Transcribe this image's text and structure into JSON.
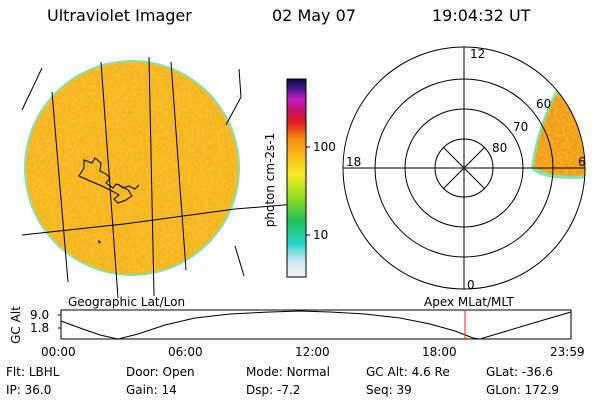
{
  "header": {
    "instrument": "Ultraviolet Imager",
    "date": "02 May 07",
    "time": "19:04:32 UT"
  },
  "colorbar": {
    "unit_label": "photon cm-2s-1",
    "ticks": [
      "100",
      "10"
    ]
  },
  "polar_plot": {
    "top_label": "12",
    "left_label": "18",
    "bottom_label": "0",
    "right_label": "6",
    "ring_labels": [
      "60",
      "70",
      "80"
    ]
  },
  "panel_labels": {
    "left": "Geographic Lat/Lon",
    "right": "Apex MLat/MLT"
  },
  "altitude_strip": {
    "axis_label": "GC Alt",
    "y_ticks": [
      "9.0",
      "1.8"
    ],
    "x_ticks": [
      "00:00",
      "06:00",
      "12:00",
      "18:00",
      "23:59"
    ]
  },
  "footer": {
    "row1": [
      {
        "key": "Flt:",
        "value": "LBHL"
      },
      {
        "key": "Door:",
        "value": "Open"
      },
      {
        "key": "Mode:",
        "value": "Normal"
      },
      {
        "key": "GC Alt:",
        "value": "4.6 Re"
      },
      {
        "key": "GLat:",
        "value": "-36.6"
      }
    ],
    "row2": [
      {
        "key": "IP:",
        "value": "36.0"
      },
      {
        "key": "Gain:",
        "value": "14"
      },
      {
        "key": "Dsp:",
        "value": "-7.2"
      },
      {
        "key": "Seq:",
        "value": "39"
      },
      {
        "key": "GLon:",
        "value": "172.9"
      }
    ]
  },
  "colors": {
    "disk_fill": "#f5b51f",
    "disk_rim": "#7fe3b0",
    "marker_line": "#e8221b"
  }
}
